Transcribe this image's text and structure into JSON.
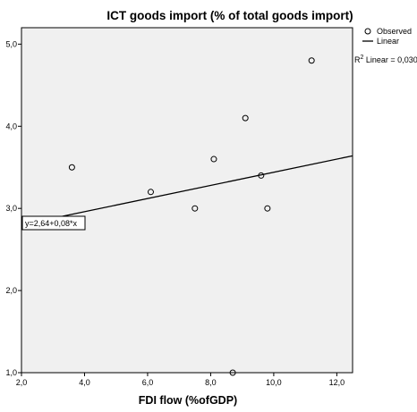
{
  "chart_data": {
    "type": "scatter",
    "title": "ICT goods import (% of total goods import)",
    "xlabel": "FDI flow (%ofGDP)",
    "ylabel": "",
    "xlim": [
      2.0,
      12.5
    ],
    "ylim": [
      1.0,
      5.2
    ],
    "x_ticks": [
      "2,0",
      "4,0",
      "6,0",
      "8,0",
      "10,0",
      "12,0"
    ],
    "x_tick_values": [
      2,
      4,
      6,
      8,
      10,
      12
    ],
    "y_ticks": [
      "1,0",
      "2,0",
      "3,0",
      "4,0",
      "5,0"
    ],
    "y_tick_values": [
      1,
      2,
      3,
      4,
      5
    ],
    "grid": false,
    "plot_background": "#f0f0f0",
    "points": [
      {
        "x": 3.6,
        "y": 3.5
      },
      {
        "x": 6.1,
        "y": 3.2
      },
      {
        "x": 7.5,
        "y": 3.0
      },
      {
        "x": 8.1,
        "y": 3.6
      },
      {
        "x": 8.7,
        "y": 1.0
      },
      {
        "x": 9.1,
        "y": 4.1
      },
      {
        "x": 9.6,
        "y": 3.4
      },
      {
        "x": 9.8,
        "y": 3.0
      },
      {
        "x": 11.2,
        "y": 4.8
      }
    ],
    "fit_line": {
      "intercept": 2.64,
      "slope": 0.08,
      "x_start": 3.3,
      "x_end": 12.5
    },
    "fit_equation_label": "y=2,64+0,08*x",
    "legend": {
      "placement": "top-right",
      "observed_label": "Observed",
      "linear_label": "Linear",
      "r2_label": "R",
      "r2_superscript": "2",
      "r2_suffix": " Linear = 0,030"
    }
  }
}
